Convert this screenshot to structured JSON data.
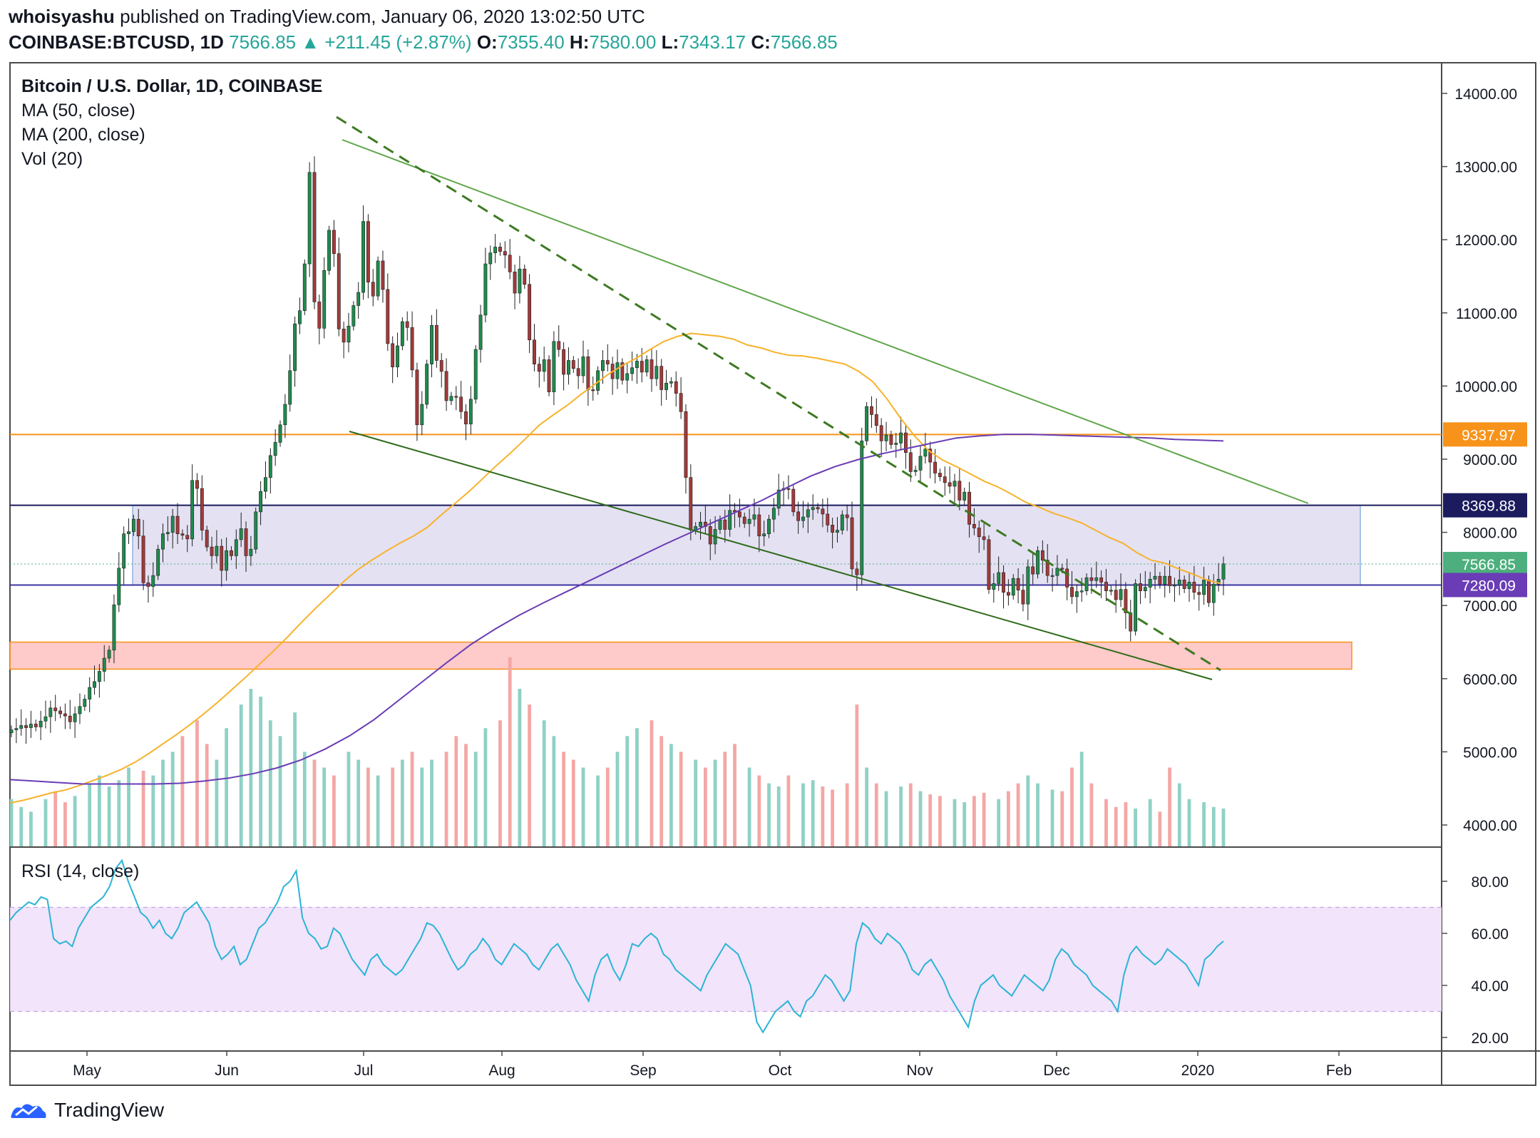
{
  "header": {
    "author": "whoisyashu",
    "published_text": "published on TradingView.com, January 06, 2020 13:02:50 UTC",
    "symbol": "COINBASE:BTCUSD, 1D",
    "last": "7566.85",
    "arrow": "▲",
    "change": "+211.45 (+2.87%)",
    "o_label": "O:",
    "o_value": "7355.40",
    "h_label": "H:",
    "h_value": "7580.00",
    "l_label": "L:",
    "l_value": "7343.17",
    "c_label": "C:",
    "c_value": "7566.85"
  },
  "legend": {
    "title": "Bitcoin / U.S. Dollar, 1D, COINBASE",
    "ma50": "MA (50, close)",
    "ma200": "MA (200, close)",
    "vol": "Vol (20)",
    "rsi": "RSI (14, close)"
  },
  "footer": {
    "brand": "TradingView"
  },
  "colors": {
    "up": "#26a69a",
    "up_body": "#1e8c4c",
    "down": "#ef5350",
    "down_body": "#a33a3a",
    "ma50": "#f7b22a",
    "ma200": "#6a3cb5",
    "rsi": "#2ab4d6",
    "trend": "#4c8c2b",
    "support_band": "#d9d4ee",
    "demand_band": "#ffc4c4"
  },
  "chart_data": {
    "type": "candlestick",
    "ylim": [
      3800,
      14400
    ],
    "y_ticks": [
      "14000.00",
      "13000.00",
      "12000.00",
      "11000.00",
      "10000.00",
      "9000.00",
      "8000.00",
      "7000.00",
      "6000.00",
      "5000.00",
      "4000.00"
    ],
    "x_ticks": [
      "May",
      "Jun",
      "Jul",
      "Aug",
      "Sep",
      "Oct",
      "Nov",
      "Dec",
      "2020",
      "Feb"
    ],
    "price_labels": [
      {
        "value": 9337.97,
        "text": "9337.97",
        "color": "#f7931a"
      },
      {
        "value": 8369.88,
        "text": "8369.88",
        "color": "#1b1b5e"
      },
      {
        "value": 7566.85,
        "text": "7566.85",
        "color": "#4caf7d"
      },
      {
        "value": 7280.09,
        "text": "7280.09",
        "color": "#6a3cb5"
      }
    ],
    "close_series": [
      5300,
      5320,
      5360,
      5330,
      5380,
      5340,
      5420,
      5480,
      5600,
      5560,
      5520,
      5490,
      5410,
      5520,
      5620,
      5720,
      5880,
      5960,
      6100,
      6280,
      6390,
      7010,
      7510,
      7980,
      8010,
      8180,
      7950,
      7310,
      7260,
      7410,
      7770,
      7980,
      8000,
      8220,
      7980,
      7960,
      7910,
      8710,
      8600,
      8030,
      7800,
      7680,
      7810,
      7480,
      7750,
      7680,
      7900,
      8050,
      7680,
      7770,
      8280,
      8560,
      8750,
      9050,
      9230,
      9470,
      9750,
      10210,
      10850,
      11030,
      11670,
      12920,
      11150,
      10790,
      11580,
      12130,
      11810,
      10780,
      10600,
      10820,
      11100,
      11280,
      12250,
      11420,
      11230,
      11710,
      11320,
      10580,
      10260,
      10550,
      10880,
      10800,
      10220,
      9470,
      9750,
      10300,
      10830,
      10350,
      10200,
      9800,
      9860,
      9850,
      9650,
      9480,
      9820,
      10500,
      10970,
      11670,
      11820,
      11900,
      11840,
      11790,
      11560,
      11270,
      11600,
      11390,
      10630,
      10300,
      10200,
      10360,
      9920,
      10610,
      10500,
      10160,
      10350,
      10240,
      10140,
      10400,
      9950,
      9940,
      10210,
      10350,
      10300,
      10100,
      10320,
      10080,
      10170,
      10250,
      10340,
      10190,
      10360,
      10100,
      10270,
      9950,
      10040,
      10060,
      9900,
      9650,
      8750,
      8030,
      8080,
      8140,
      8080,
      7840,
      8040,
      8170,
      8040,
      8300,
      8280,
      8210,
      8120,
      8180,
      8240,
      7950,
      7980,
      8180,
      8330,
      8580,
      8600,
      8590,
      8280,
      8160,
      8210,
      8310,
      8340,
      8320,
      8250,
      8100,
      8000,
      8030,
      8240,
      8200,
      7500,
      7420,
      9250,
      9720,
      9610,
      9460,
      9250,
      9330,
      9200,
      9220,
      9360,
      9090,
      8830,
      8850,
      9040,
      9140,
      8960,
      8810,
      8760,
      8680,
      8630,
      8700,
      8440,
      8550,
      8110,
      8060,
      7940,
      7900,
      7220,
      7300,
      7450,
      7180,
      7140,
      7370,
      7210,
      7020,
      7530,
      7430,
      7750,
      7620,
      7410,
      7410,
      7510,
      7500,
      7250,
      7120,
      7190,
      7200,
      7380,
      7340,
      7380,
      7320,
      7200,
      7210,
      7080,
      7220,
      6900,
      6650,
      7300,
      7200,
      7250,
      7360,
      7400,
      7290,
      7400,
      7270,
      7280,
      7350,
      7230,
      7320,
      7180,
      7150,
      7350,
      7040,
      7290,
      7360,
      7570
    ],
    "ma50_series": [
      4300,
      4340,
      4390,
      4440,
      4480,
      4540,
      4610,
      4680,
      4760,
      4860,
      4980,
      5110,
      5240,
      5380,
      5530,
      5690,
      5860,
      6030,
      6210,
      6390,
      6580,
      6780,
      6970,
      7150,
      7330,
      7490,
      7620,
      7740,
      7850,
      7950,
      8070,
      8240,
      8400,
      8560,
      8740,
      8920,
      9090,
      9270,
      9460,
      9600,
      9730,
      9880,
      10020,
      10160,
      10280,
      10380,
      10500,
      10610,
      10680,
      10720,
      10700,
      10680,
      10640,
      10560,
      10520,
      10460,
      10420,
      10410,
      10380,
      10340,
      10300,
      10200,
      10060,
      9830,
      9560,
      9320,
      9120,
      8990,
      8900,
      8800,
      8700,
      8620,
      8520,
      8410,
      8340,
      8260,
      8200,
      8130,
      8030,
      7930,
      7850,
      7720,
      7620,
      7580,
      7500,
      7430,
      7350,
      7300
    ],
    "ma200_series": [
      4620,
      4600,
      4580,
      4560,
      4560,
      4560,
      4560,
      4570,
      4600,
      4640,
      4700,
      4780,
      4890,
      5040,
      5220,
      5440,
      5700,
      5960,
      6220,
      6470,
      6680,
      6870,
      7040,
      7200,
      7360,
      7520,
      7680,
      7840,
      7990,
      8140,
      8290,
      8440,
      8610,
      8770,
      8900,
      9000,
      9080,
      9150,
      9220,
      9290,
      9320,
      9340,
      9340,
      9330,
      9320,
      9310,
      9300,
      9290,
      9270,
      9260,
      9250
    ],
    "volume_series": [
      0.3,
      0.25,
      0.22,
      0.3,
      0.35,
      0.28,
      0.32,
      0.4,
      0.45,
      0.38,
      0.42,
      0.5,
      0.48,
      0.45,
      0.55,
      0.6,
      0.7,
      0.8,
      0.65,
      0.55,
      0.75,
      0.9,
      1.0,
      0.95,
      0.8,
      0.7,
      0.85,
      0.6,
      0.55,
      0.5,
      0.45,
      0.6,
      0.55,
      0.5,
      0.45,
      0.5,
      0.55,
      0.6,
      0.5,
      0.55,
      0.6,
      0.7,
      0.65,
      0.6,
      0.75,
      0.8,
      1.2,
      1.0,
      0.9,
      0.8,
      0.7,
      0.6,
      0.55,
      0.5,
      0.45,
      0.5,
      0.6,
      0.7,
      0.75,
      0.8,
      0.7,
      0.65,
      0.6,
      0.55,
      0.5,
      0.55,
      0.6,
      0.65,
      0.5,
      0.45,
      0.4,
      0.38,
      0.45,
      0.4,
      0.42,
      0.38,
      0.36,
      0.4,
      0.9,
      0.5,
      0.4,
      0.35,
      0.38,
      0.4,
      0.35,
      0.33,
      0.32,
      0.3,
      0.28,
      0.32,
      0.34,
      0.3,
      0.35,
      0.4,
      0.45,
      0.4,
      0.36,
      0.35,
      0.5,
      0.6,
      0.4,
      0.3,
      0.25,
      0.28,
      0.24,
      0.3,
      0.22,
      0.5,
      0.4,
      0.3,
      0.28,
      0.25,
      0.24
    ],
    "rsi_series": [
      65,
      68,
      70,
      72,
      71,
      74,
      73,
      58,
      56,
      57,
      55,
      62,
      66,
      70,
      72,
      74,
      78,
      85,
      88,
      80,
      74,
      68,
      66,
      62,
      65,
      60,
      58,
      62,
      68,
      70,
      72,
      68,
      64,
      55,
      50,
      52,
      55,
      48,
      50,
      56,
      62,
      64,
      68,
      72,
      78,
      80,
      84,
      66,
      60,
      58,
      54,
      55,
      62,
      60,
      55,
      50,
      47,
      44,
      50,
      52,
      48,
      46,
      44,
      46,
      50,
      54,
      58,
      64,
      63,
      60,
      55,
      50,
      46,
      48,
      52,
      54,
      58,
      55,
      50,
      48,
      52,
      56,
      54,
      52,
      48,
      46,
      50,
      54,
      56,
      52,
      48,
      42,
      38,
      34,
      44,
      50,
      52,
      46,
      42,
      48,
      56,
      55,
      58,
      60,
      58,
      52,
      50,
      46,
      44,
      42,
      40,
      38,
      44,
      48,
      52,
      56,
      54,
      52,
      46,
      40,
      26,
      22,
      26,
      30,
      32,
      34,
      30,
      28,
      34,
      36,
      40,
      44,
      42,
      38,
      34,
      38,
      56,
      64,
      62,
      58,
      56,
      60,
      58,
      56,
      52,
      46,
      44,
      48,
      50,
      46,
      42,
      36,
      32,
      28,
      24,
      34,
      40,
      42,
      44,
      40,
      38,
      36,
      40,
      44,
      42,
      40,
      38,
      42,
      50,
      54,
      52,
      48,
      46,
      44,
      40,
      38,
      36,
      34,
      30,
      44,
      52,
      55,
      52,
      50,
      48,
      50,
      54,
      52,
      50,
      48,
      44,
      40,
      50,
      52,
      55,
      57
    ],
    "rsi_ylim": [
      15,
      95
    ],
    "rsi_ticks": [
      "80.00",
      "60.00",
      "40.00",
      "20.00"
    ],
    "rsi_band": [
      30,
      70
    ],
    "support_band": [
      7280.09,
      8369.88
    ],
    "demand_band": [
      6130,
      6500
    ],
    "resistance_line": 9337.97
  }
}
